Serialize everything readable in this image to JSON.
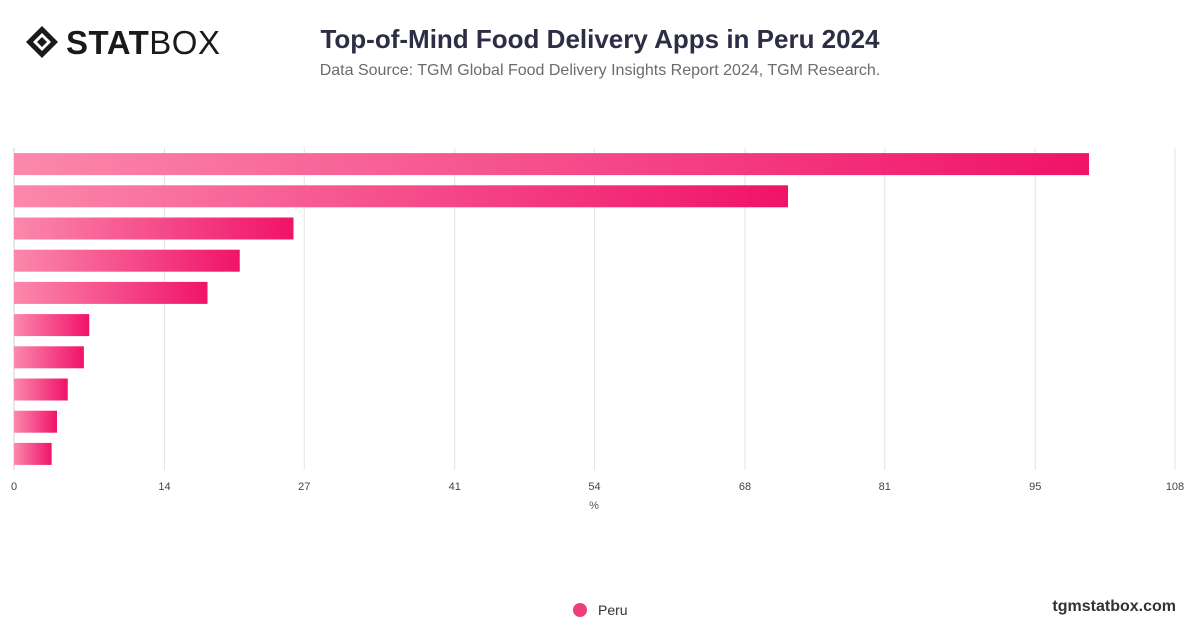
{
  "header": {
    "logo_bold": "STAT",
    "logo_light": "BOX",
    "title": "Top-of-Mind Food Delivery Apps in Peru 2024",
    "subtitle": "Data Source: TGM Global Food Delivery Insights Report 2024, TGM Research."
  },
  "footer": {
    "site": "tgmstatbox.com"
  },
  "colors": {
    "bar_start": "#fb88ac",
    "bar_end": "#f0136a",
    "gridline": "#e3e3e3",
    "legend_dot": "#ec407a"
  },
  "chart_data": {
    "type": "bar",
    "orientation": "horizontal",
    "categories": [
      "",
      "",
      "",
      "",
      "",
      "",
      "",
      "",
      "",
      ""
    ],
    "series": [
      {
        "name": "Peru",
        "values": [
          100,
          72,
          26,
          21,
          18,
          7,
          6.5,
          5,
          4,
          3.5
        ]
      }
    ],
    "xlabel": "%",
    "xlim": [
      0,
      108
    ],
    "xticks": [
      0,
      14,
      27,
      41,
      54,
      68,
      81,
      95,
      108
    ],
    "grid": true,
    "legend_position": "bottom-center"
  }
}
